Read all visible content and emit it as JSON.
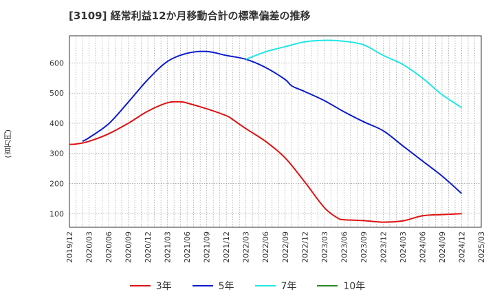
{
  "chart_data": {
    "type": "line",
    "title": "[3109]  経常利益12か月移動合計の標準偏差の推移",
    "ylabel": "(百万円)",
    "xlabel": "",
    "ylim": [
      55,
      690
    ],
    "yticks": [
      100,
      200,
      300,
      400,
      500,
      600
    ],
    "x_ticks": [
      "2019/12",
      "2020/03",
      "2020/06",
      "2020/09",
      "2020/12",
      "2021/03",
      "2021/06",
      "2021/09",
      "2021/12",
      "2022/03",
      "2022/06",
      "2022/09",
      "2022/12",
      "2023/03",
      "2023/06",
      "2023/09",
      "2023/12",
      "2024/03",
      "2024/06",
      "2024/09",
      "2024/12",
      "2025/03"
    ],
    "grid": true,
    "legend_position": "bottom",
    "series": [
      {
        "name": "3年",
        "color": "#dd1111",
        "x": [
          "2019/12",
          "2020/01",
          "2020/03",
          "2020/06",
          "2020/09",
          "2020/12",
          "2021/03",
          "2021/05",
          "2021/06",
          "2021/09",
          "2021/12",
          "2022/01",
          "2022/03",
          "2022/06",
          "2022/09",
          "2022/12",
          "2023/03",
          "2023/05",
          "2023/06",
          "2023/09",
          "2023/12",
          "2024/03",
          "2024/06",
          "2024/09",
          "2024/12"
        ],
        "values": [
          330,
          331,
          340,
          365,
          400,
          440,
          468,
          471,
          467,
          448,
          425,
          412,
          382,
          340,
          285,
          205,
          120,
          86,
          80,
          77,
          72,
          76,
          93,
          97,
          100
        ]
      },
      {
        "name": "5年",
        "color": "#0a1acc",
        "x": [
          "2020/02",
          "2020/03",
          "2020/06",
          "2020/09",
          "2020/12",
          "2021/03",
          "2021/06",
          "2021/09",
          "2021/12",
          "2022/03",
          "2022/06",
          "2022/09",
          "2022/10",
          "2022/12",
          "2023/03",
          "2023/06",
          "2023/09",
          "2023/12",
          "2024/03",
          "2024/06",
          "2024/09",
          "2024/12"
        ],
        "values": [
          340,
          352,
          398,
          470,
          545,
          605,
          632,
          638,
          625,
          612,
          585,
          545,
          524,
          505,
          475,
          438,
          405,
          375,
          325,
          275,
          225,
          167
        ]
      },
      {
        "name": "7年",
        "color": "#22e6e6",
        "x": [
          "2022/03",
          "2022/06",
          "2022/09",
          "2022/12",
          "2023/03",
          "2023/06",
          "2023/09",
          "2023/12",
          "2024/03",
          "2024/06",
          "2024/09",
          "2024/12"
        ],
        "values": [
          612,
          637,
          654,
          670,
          675,
          672,
          660,
          625,
          595,
          550,
          495,
          452
        ]
      },
      {
        "name": "10年",
        "color": "#228822",
        "x": [],
        "values": []
      }
    ]
  }
}
